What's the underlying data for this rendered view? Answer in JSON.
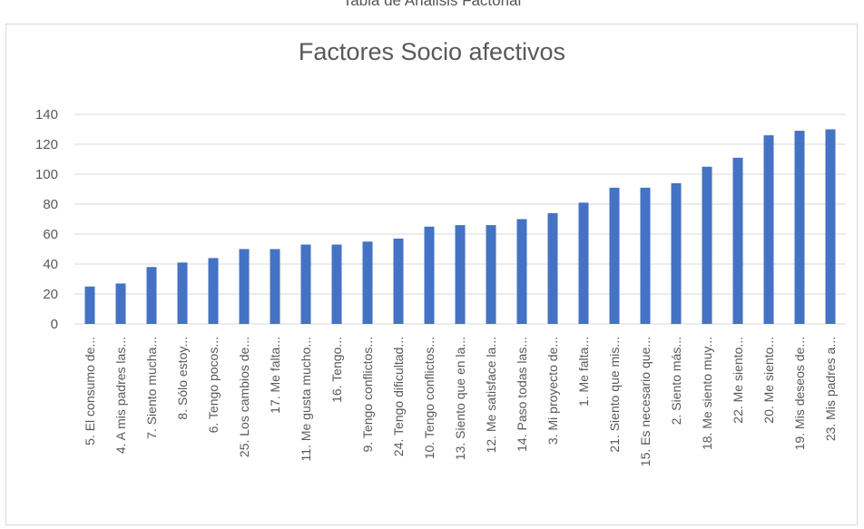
{
  "caption_fragment": "Tabla de Análisis Factorial",
  "chart_data": {
    "type": "bar",
    "title": "Factores Socio afectivos",
    "xlabel": "",
    "ylabel": "",
    "ylim": [
      0,
      140
    ],
    "yticks": [
      0,
      20,
      40,
      60,
      80,
      100,
      120,
      140
    ],
    "grid": true,
    "legend": "none",
    "bar_color": "#4472c4",
    "categories": [
      "5. El consumo de...",
      "4. A mis padres las...",
      "7. Siento mucha...",
      "8. Sólo estoy...",
      "6. Tengo pocos...",
      "25. Los cambios de...",
      "17. Me falta...",
      "11. Me gusta mucho...",
      "16. Tengo...",
      "9. Tengo conflictos...",
      "24. Tengo dificultad...",
      "10. Tengo conflictos...",
      "13. Siento que en la...",
      "12. Me satisface la...",
      "14. Paso todas las...",
      "3. Mi proyecto de...",
      "1. Me falta...",
      "21. Siento que mis...",
      "15. Es necesario que...",
      "2. Siento más...",
      "18. Me siento muy...",
      "22. Me siento...",
      "20. Me siento...",
      "19. Mis deseos de...",
      "23. Mis padres a..."
    ],
    "values": [
      25,
      27,
      38,
      41,
      44,
      50,
      50,
      53,
      53,
      55,
      57,
      65,
      66,
      66,
      70,
      74,
      81,
      91,
      91,
      94,
      105,
      111,
      126,
      129,
      130
    ]
  }
}
